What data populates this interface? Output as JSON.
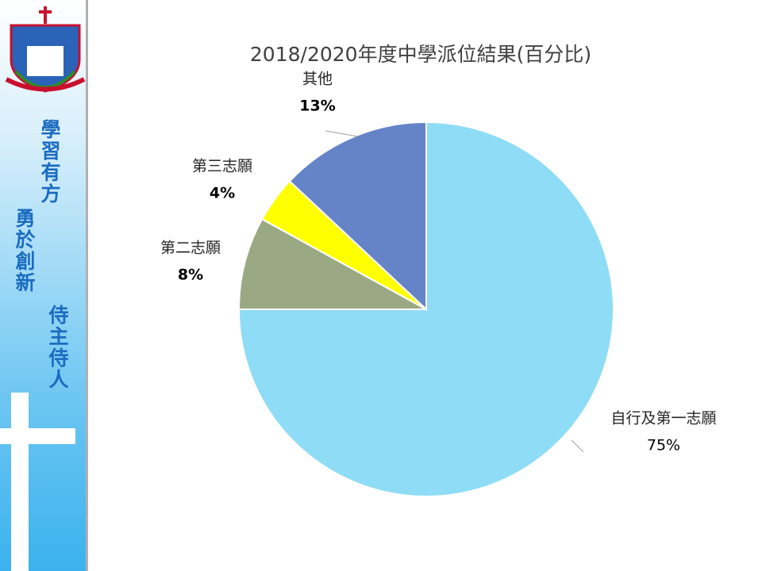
{
  "sidebar": {
    "motto_1": "學習有方",
    "motto_2": "勇於創新",
    "motto_3": "侍主侍人"
  },
  "chart_data": {
    "type": "pie",
    "title": "2018/2020年度中學派位結果(百分比)",
    "categories": [
      "自行及第一志願",
      "第二志願",
      "第三志願",
      "其他"
    ],
    "values": [
      75,
      8,
      4,
      13
    ],
    "value_labels": [
      "75%",
      "8%",
      "4%",
      "13%"
    ],
    "colors": [
      "#8fdcf6",
      "#9aa984",
      "#ffff00",
      "#6584c8"
    ]
  }
}
